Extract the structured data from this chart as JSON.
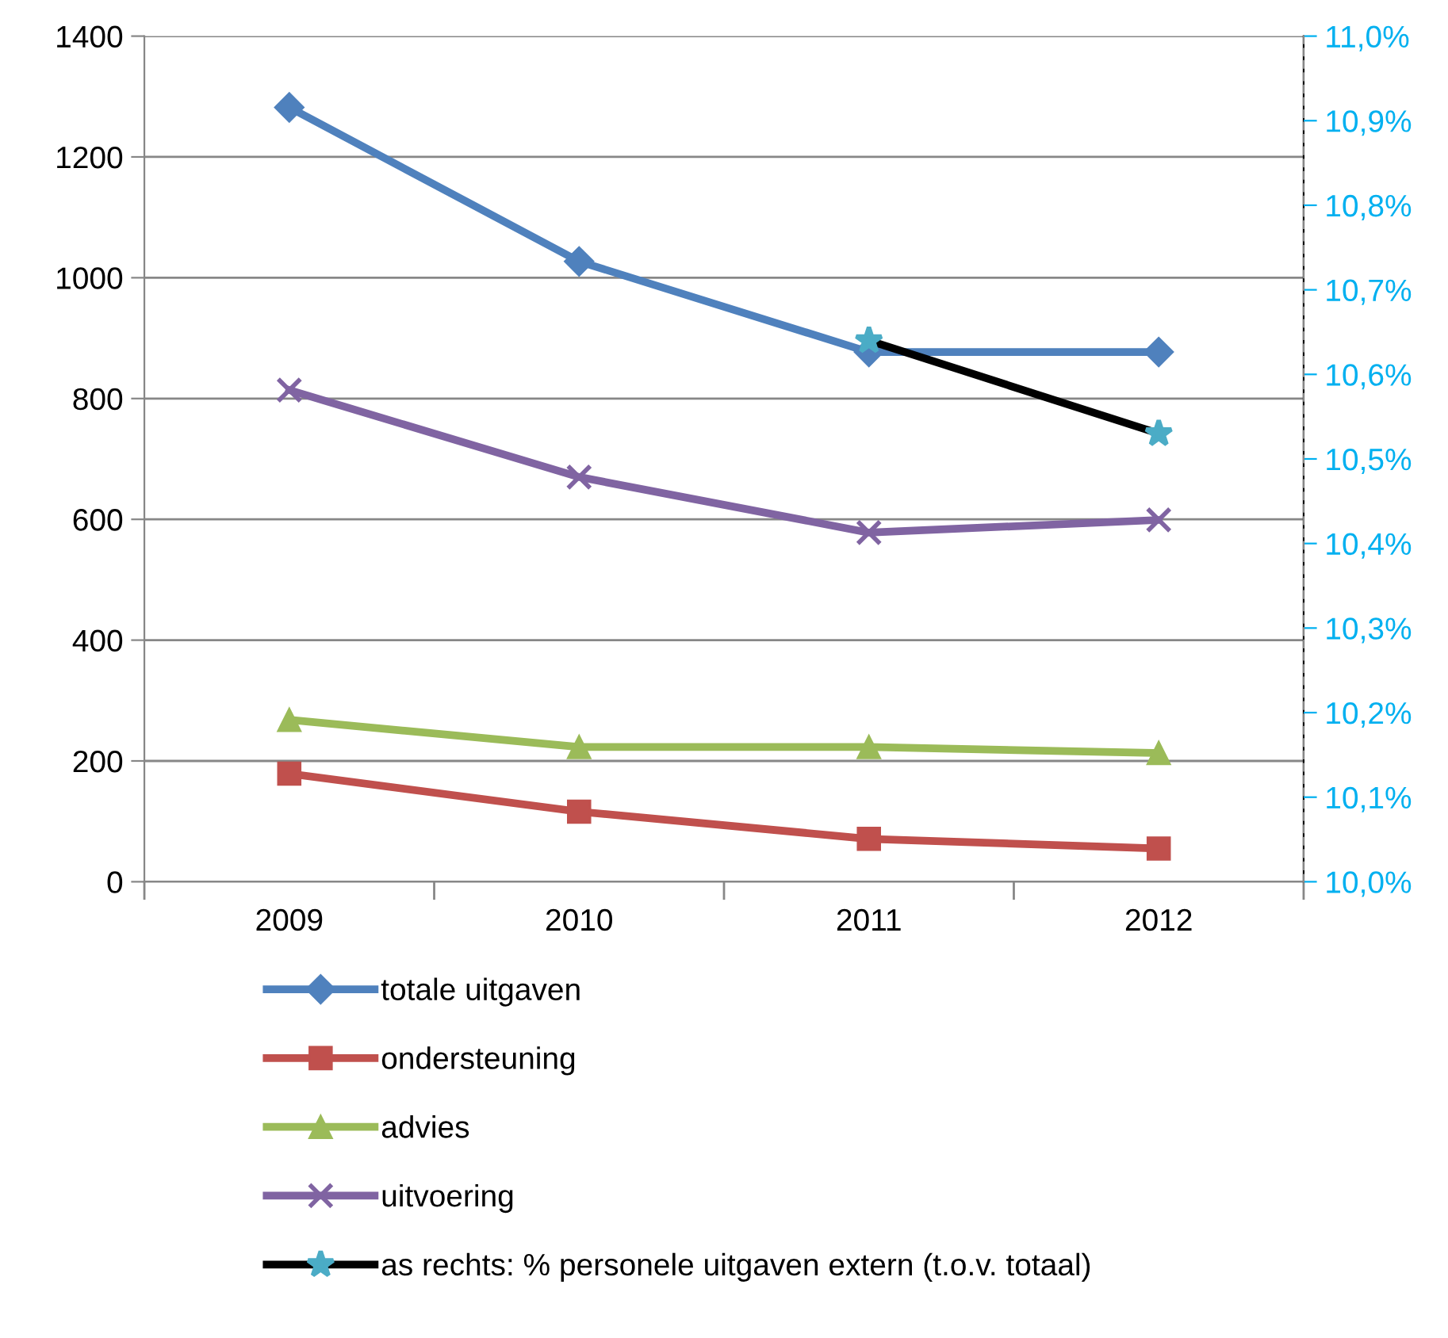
{
  "chart_data": {
    "type": "line",
    "categories": [
      "2009",
      "2010",
      "2011",
      "2012"
    ],
    "ylim": [
      0,
      1400
    ],
    "yticks": [
      0,
      200,
      400,
      600,
      800,
      1000,
      1200,
      1400
    ],
    "y2lim": [
      10.0,
      11.0
    ],
    "y2ticks": [
      {
        "value": 10.0,
        "label": "10,0%"
      },
      {
        "value": 10.1,
        "label": "10,1%"
      },
      {
        "value": 10.2,
        "label": "10,2%"
      },
      {
        "value": 10.3,
        "label": "10,3%"
      },
      {
        "value": 10.4,
        "label": "10,4%"
      },
      {
        "value": 10.5,
        "label": "10,5%"
      },
      {
        "value": 10.6,
        "label": "10,6%"
      },
      {
        "value": 10.7,
        "label": "10,7%"
      },
      {
        "value": 10.8,
        "label": "10,8%"
      },
      {
        "value": 10.9,
        "label": "10,9%"
      },
      {
        "value": 11.0,
        "label": "11,0%"
      }
    ],
    "grid": "y",
    "legend": "bottom",
    "series": [
      {
        "name": "totale uitgaven",
        "color": "#4f81bd",
        "marker": "diamond",
        "values": [
          1282,
          1027,
          877,
          877
        ]
      },
      {
        "name": "ondersteuning",
        "color": "#c0504d",
        "marker": "square",
        "values": [
          179,
          116,
          71,
          55
        ]
      },
      {
        "name": "advies",
        "color": "#9bbb59",
        "marker": "triangle",
        "values": [
          268,
          223,
          223,
          213
        ]
      },
      {
        "name": "uitvoering",
        "color": "#8064a2",
        "marker": "cross",
        "values": [
          814,
          670,
          578,
          599
        ]
      },
      {
        "name": "as rechts: % personele uitgaven extern (t.o.v. totaal)",
        "color": "#000000",
        "colors": [
          null,
          null,
          "#4bacc6",
          "#4bacc6"
        ],
        "marker": "star",
        "axis": "y2",
        "values": [
          null,
          null,
          10.64,
          10.53
        ]
      }
    ]
  }
}
